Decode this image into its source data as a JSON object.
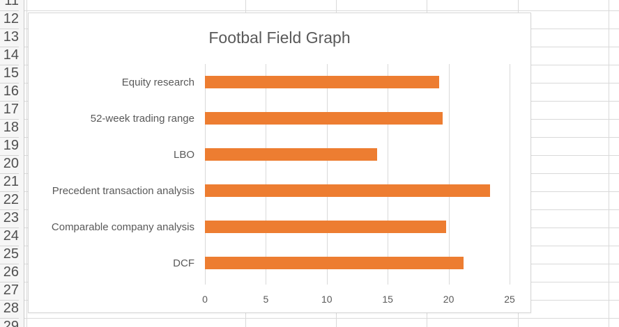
{
  "app": {
    "kind": "spreadsheet-worksheet-with-embedded-chart"
  },
  "spreadsheet": {
    "row_numbers": [
      "11",
      "12",
      "13",
      "14",
      "15",
      "16",
      "17",
      "18",
      "19",
      "20",
      "21",
      "22",
      "23",
      "24",
      "25",
      "26",
      "27",
      "28",
      "29"
    ],
    "header_bg": "#F6F6F6",
    "header_text_color": "#4F4F4F",
    "grid_color": "#D9D9D9"
  },
  "chart_data": {
    "type": "bar",
    "orientation": "horizontal",
    "title": "Footbal Field Graph",
    "categories": [
      "Equity research",
      "52-week trading range",
      "LBO",
      "Precedent transaction analysis",
      "Comparable company analysis",
      "DCF"
    ],
    "category_order": "top-to-bottom",
    "values": [
      19.2,
      19.5,
      14.1,
      23.4,
      19.8,
      21.2
    ],
    "x_ticks": [
      "0",
      "5",
      "10",
      "15",
      "20",
      "25"
    ],
    "xlim": [
      0,
      25
    ],
    "grid": "vertical-gridlines",
    "legend": "none",
    "bar_color": "#ED7D31",
    "text_color": "#595959",
    "gridline_color": "#D9D9D9"
  }
}
